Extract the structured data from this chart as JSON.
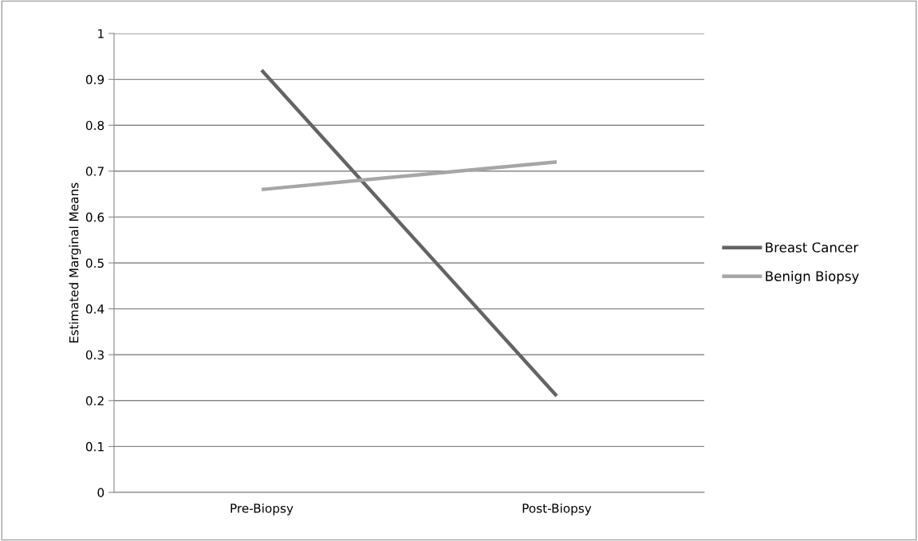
{
  "chart_data": {
    "type": "line",
    "ylabel": "Estimated Marginal Means",
    "categories": [
      "Pre-Biopsy",
      "Post-Biopsy"
    ],
    "series": [
      {
        "name": "Breast Cancer",
        "color": "#646464",
        "values": [
          0.92,
          0.21
        ]
      },
      {
        "name": "Benign Biopsy",
        "color": "#a6a6a6",
        "values": [
          0.66,
          0.72
        ]
      }
    ],
    "ylim": [
      0,
      1
    ],
    "yticks": [
      0,
      0.1,
      0.2,
      0.3,
      0.4,
      0.5,
      0.6,
      0.7,
      0.8,
      0.9,
      1
    ],
    "grid": "y",
    "legend": "right",
    "marker": "none",
    "line_style": "solid"
  }
}
